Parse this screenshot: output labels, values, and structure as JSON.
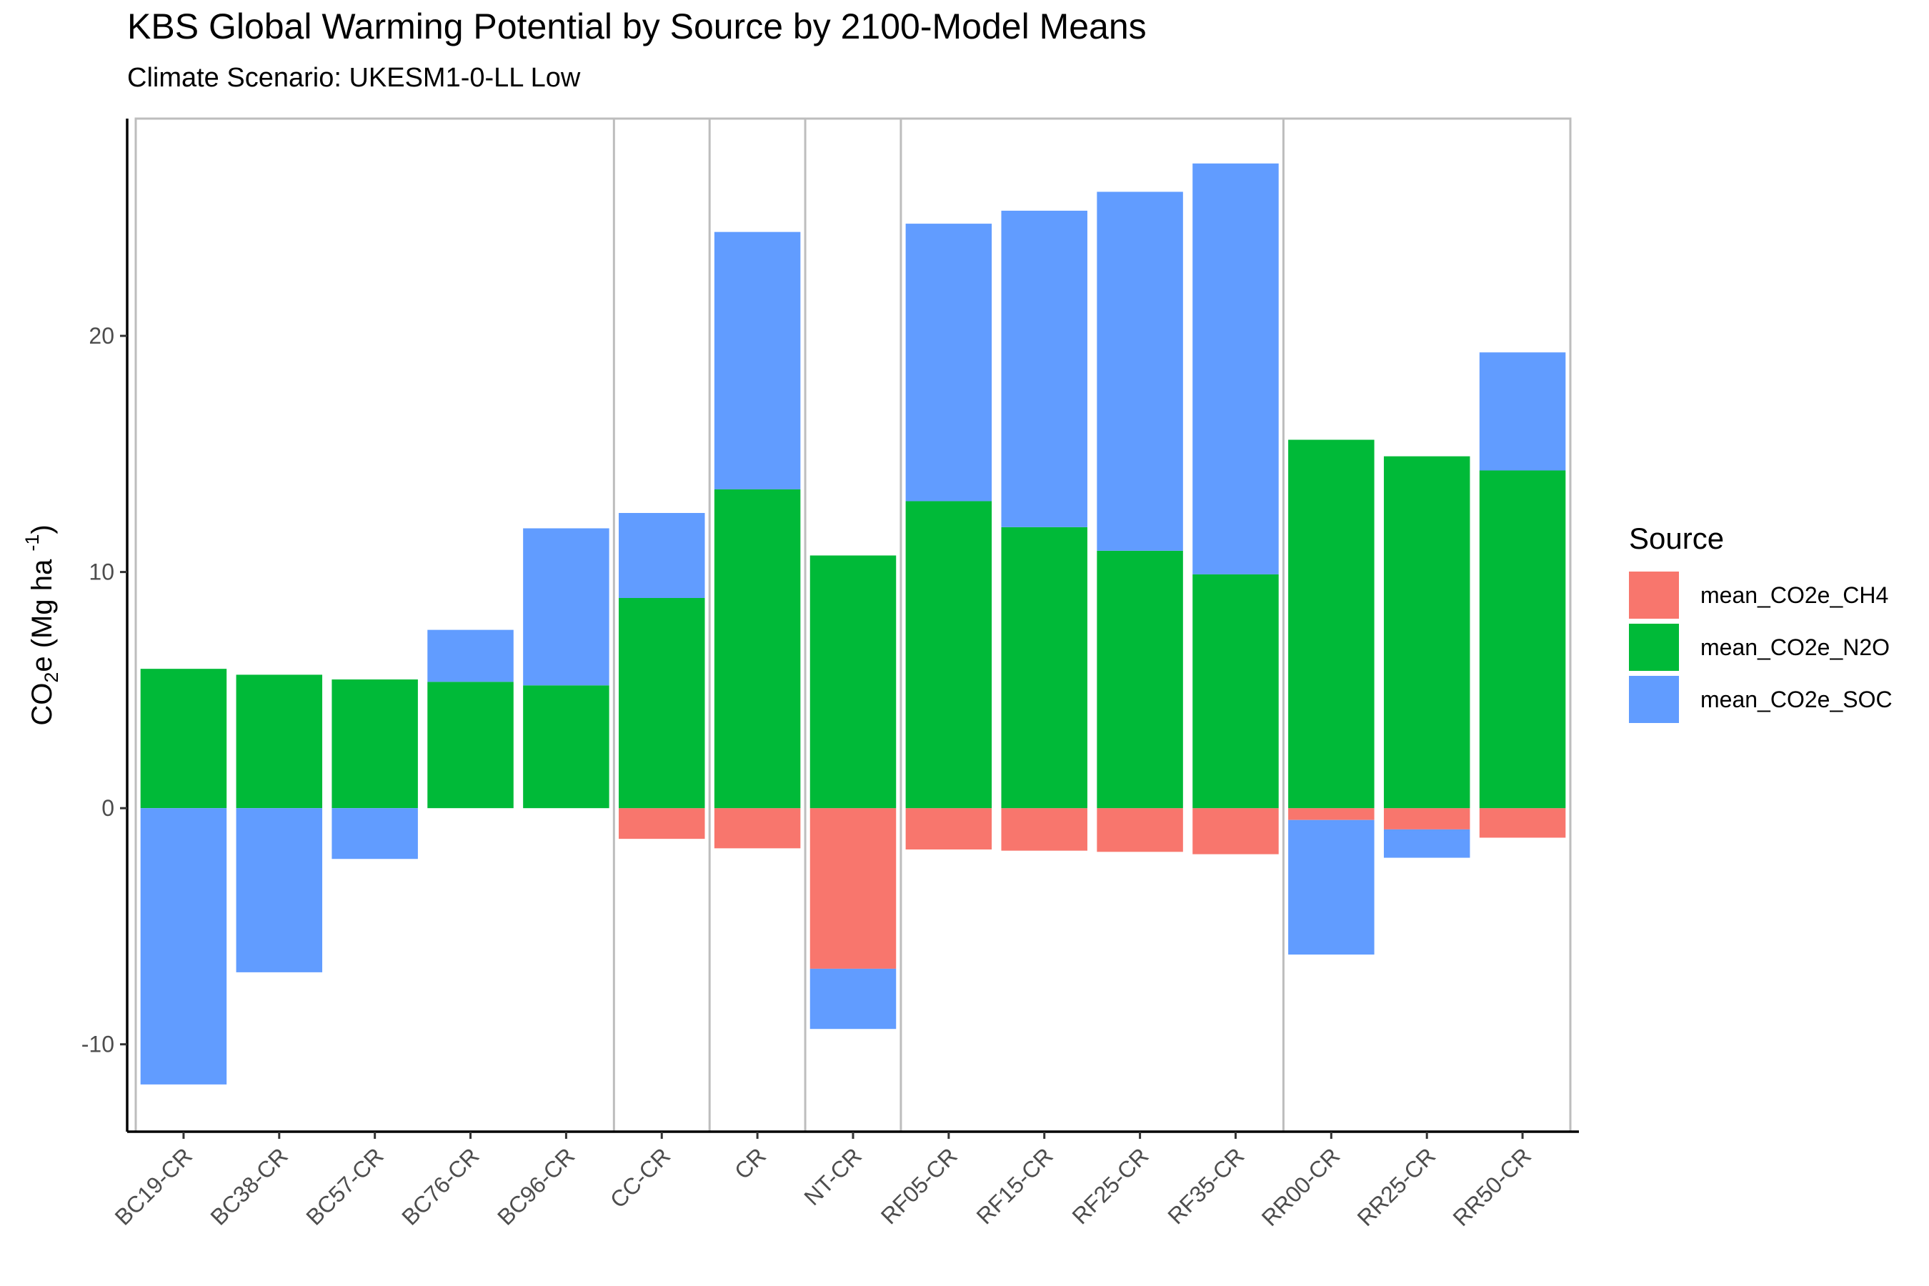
{
  "chart_data": {
    "type": "bar",
    "stacked": true,
    "title": "KBS Global Warming Potential by Source by 2100-Model Means",
    "subtitle": "Climate Scenario: UKESM1-0-LL Low",
    "ylabel": "CO2e (Mg ha -1)",
    "ylabel_parts": {
      "main": "CO",
      "sub": "2",
      "mid": "e (Mg ha ",
      "sup": "-1",
      "end": ")"
    },
    "ylim": [
      -13.7,
      29.2
    ],
    "yticks": [
      -10,
      0,
      10,
      20
    ],
    "grid": false,
    "group_separators_after": [
      "BC96-CR",
      "CC-CR",
      "CR",
      "NT-CR",
      "RF35-CR"
    ],
    "categories": [
      "BC19-CR",
      "BC38-CR",
      "BC57-CR",
      "BC76-CR",
      "BC96-CR",
      "CC-CR",
      "CR",
      "NT-CR",
      "RF05-CR",
      "RF15-CR",
      "RF25-CR",
      "RF35-CR",
      "RR00-CR",
      "RR25-CR",
      "RR50-CR"
    ],
    "series": [
      {
        "name": "mean_CO2e_CH4",
        "color": "#F8766D",
        "values": [
          0,
          0,
          0,
          0,
          0,
          -1.3,
          -1.7,
          -6.8,
          -1.75,
          -1.8,
          -1.85,
          -1.95,
          -0.5,
          -0.9,
          -1.25
        ]
      },
      {
        "name": "mean_CO2e_N2O",
        "color": "#00BA38",
        "values": [
          5.9,
          5.65,
          5.45,
          5.35,
          5.2,
          8.9,
          13.5,
          10.7,
          13.0,
          11.9,
          10.9,
          9.9,
          15.6,
          14.9,
          14.3
        ]
      },
      {
        "name": "mean_CO2e_SOC",
        "color": "#619CFF",
        "values": [
          -11.7,
          -6.95,
          -2.15,
          2.2,
          6.65,
          3.6,
          10.9,
          -2.55,
          11.75,
          13.4,
          15.2,
          17.4,
          -5.7,
          -1.2,
          5.0
        ]
      }
    ],
    "legend": {
      "title": "Source",
      "placement": "right"
    }
  }
}
